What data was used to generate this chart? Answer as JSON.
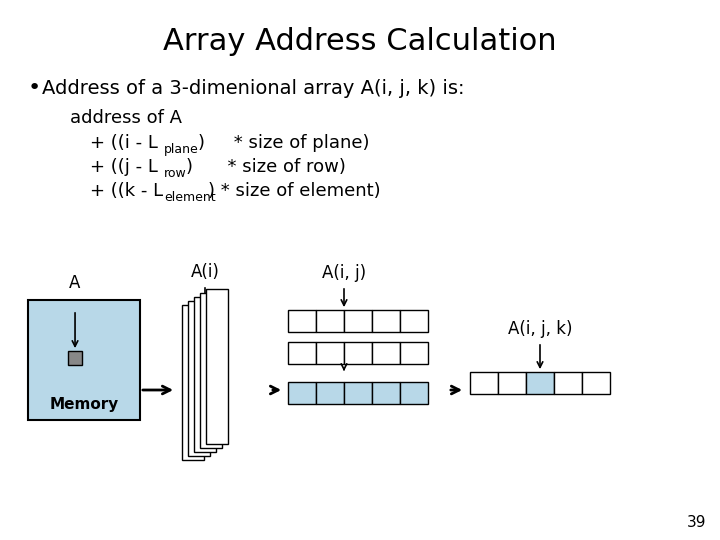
{
  "title": "Array Address Calculation",
  "bullet": "Address of a 3-dimenional array A(i, j, k) is:",
  "formula_line1": "address of A",
  "label_A": "A",
  "label_Ai": "A(i)",
  "label_Aij": "A(i, j)",
  "label_Aijk": "A(i, j, k)",
  "label_memory": "Memory",
  "page_num": "39",
  "bg_color": "#ffffff",
  "light_blue": "#b8d8e8",
  "gray_box": "#888888",
  "box_border": "#000000",
  "text_color": "#000000",
  "title_fontsize": 22,
  "bullet_fontsize": 14,
  "formula_fontsize": 13,
  "sub_fontsize": 9,
  "label_fontsize": 12,
  "mem_label_fontsize": 11,
  "pagenum_fontsize": 11
}
